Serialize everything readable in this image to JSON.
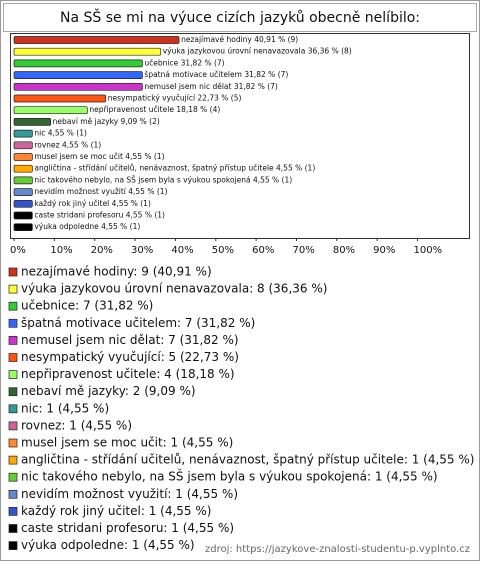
{
  "chart_data": {
    "type": "bar",
    "orientation": "horizontal",
    "title": "Na SŠ se mi na výuce cizích jazyků obecně nelíbilo:",
    "categories": [
      "nezajímavé hodiny",
      "výuka jazykovou úrovní nenavazovala",
      "učebnice",
      "špatná motivace učitelem",
      "nemusel jsem nic dělat",
      "nesympatický vyučující",
      "nepřipravenost učitele",
      "nebaví mě jazyky",
      "nic",
      "rovnez",
      "musel jsem se moc učit",
      "angličtina - střídání učitelů, nenávaznost, špatný přístup učitele",
      "nic takového nebylo, na SŠ jsem byla s výukou spokojená",
      "nevidím možnost využití",
      "každý rok jiný učitel",
      "caste stridani profesoru",
      "výuka odpoledne"
    ],
    "values": [
      40.91,
      36.36,
      31.82,
      31.82,
      31.82,
      22.73,
      18.18,
      9.09,
      4.55,
      4.55,
      4.55,
      4.55,
      4.55,
      4.55,
      4.55,
      4.55,
      4.55
    ],
    "value_labels": [
      "nezajímavé hodiny 40,91 % (9)",
      "výuka jazykovou úrovní nenavazovala 36,36 % (8)",
      "učebnice 31,82 % (7)",
      "špatná motivace učitelem 31,82 % (7)",
      "nemusel jsem nic dělat 31,82 % (7)",
      "nesympatický vyučující 22,73 % (5)",
      "nepřipravenost učitele 18,18 % (4)",
      "nebaví mě jazyky 9,09 % (2)",
      "nic 4,55 % (1)",
      "rovnez 4,55 % (1)",
      "musel jsem se moc učit 4,55 % (1)",
      "angličtina - střídání učitelů, nenávaznost, špatný přístup učitele 4,55 % (1)",
      "nic takového nebylo, na SŠ jsem byla s výukou spokojená 4,55 % (1)",
      "nevidím možnost využití 4,55 % (1)",
      "každý rok jiný učitel 4,55 % (1)",
      "caste stridani profesoru 4,55 % (1)",
      "výuka odpoledne 4,55 % (1)"
    ],
    "legend_labels": [
      "nezajímavé hodiny: 9 (40,91 %)",
      "výuka jazykovou úrovní nenavazovala: 8 (36,36 %)",
      "učebnice: 7 (31,82 %)",
      "špatná motivace učitelem: 7 (31,82 %)",
      "nemusel jsem nic dělat: 7 (31,82 %)",
      "nesympatický vyučující: 5 (22,73 %)",
      "nepřipravenost učitele: 4 (18,18 %)",
      "nebaví mě jazyky: 2 (9,09 %)",
      "nic: 1 (4,55 %)",
      "rovnez: 1 (4,55 %)",
      "musel jsem se moc učit: 1 (4,55 %)",
      "angličtina - střídání učitelů, nenávaznost, špatný přístup učitele: 1 (4,55 %)",
      "nic takového nebylo, na SŠ jsem byla s výukou spokojená: 1 (4,55 %)",
      "nevidím možnost využití: 1 (4,55 %)",
      "každý rok jiný učitel: 1 (4,55 %)",
      "caste stridani profesoru: 1 (4,55 %)",
      "výuka odpoledne: 1 (4,55 %)"
    ],
    "colors": [
      "#d0301c",
      "#ffff33",
      "#33cc33",
      "#3366ff",
      "#cc33cc",
      "#ff5511",
      "#99ff66",
      "#336633",
      "#339999",
      "#cc6699",
      "#ff8833",
      "#ffaa00",
      "#66cc33",
      "#6688cc",
      "#3355cc",
      "#000000",
      "#000000"
    ],
    "xlim": [
      0,
      113
    ],
    "xticks": [
      {
        "value": 0,
        "label": "0%"
      },
      {
        "value": 10,
        "label": "10%"
      },
      {
        "value": 20,
        "label": "20%"
      },
      {
        "value": 30,
        "label": "30%"
      },
      {
        "value": 40,
        "label": "40%"
      },
      {
        "value": 50,
        "label": "50%"
      },
      {
        "value": 60,
        "label": "60%"
      },
      {
        "value": 70,
        "label": "70%"
      },
      {
        "value": 80,
        "label": "80%"
      },
      {
        "value": 90,
        "label": "90%"
      },
      {
        "value": 100,
        "label": "100%"
      }
    ],
    "source": "zdroj: https://jazykove-znalosti-studentu-p.vyplnto.cz"
  }
}
